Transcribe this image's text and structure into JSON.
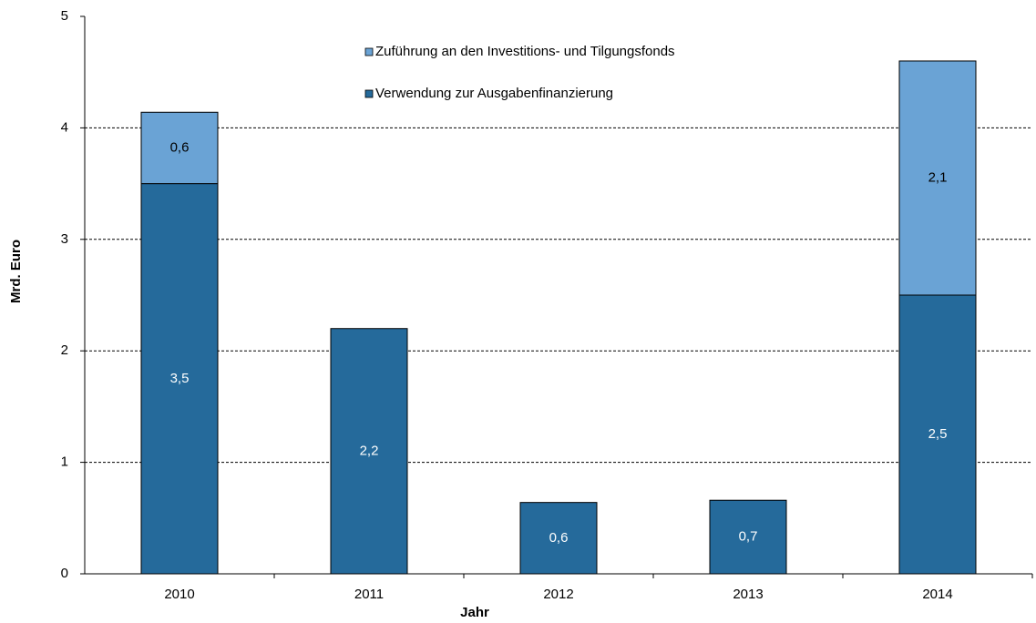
{
  "chart_data": {
    "type": "stacked_bar",
    "x_label": "Jahr",
    "y_label": "Mrd. Euro",
    "categories": [
      "2010",
      "2011",
      "2012",
      "2013",
      "2014"
    ],
    "series": [
      {
        "name": "Verwendung zur Ausgabenfinanzierung",
        "color": "#256a9b",
        "label_color": "#ffffff",
        "values": [
          3.5,
          2.2,
          0.64,
          0.66,
          2.5
        ],
        "value_labels": [
          "3,5",
          "2,2",
          "0,6",
          "0,7",
          "2,5"
        ]
      },
      {
        "name": "Zuführung an den Investitions- und Tilgungsfonds",
        "color": "#6aa3d5",
        "label_color": "#000000",
        "values": [
          0.64,
          null,
          null,
          null,
          2.1
        ],
        "value_labels": [
          "0,6",
          null,
          null,
          null,
          "2,1"
        ]
      }
    ],
    "ylim": [
      0,
      5
    ],
    "yticks": [
      0,
      1,
      2,
      3,
      4,
      5
    ],
    "grid": true
  }
}
